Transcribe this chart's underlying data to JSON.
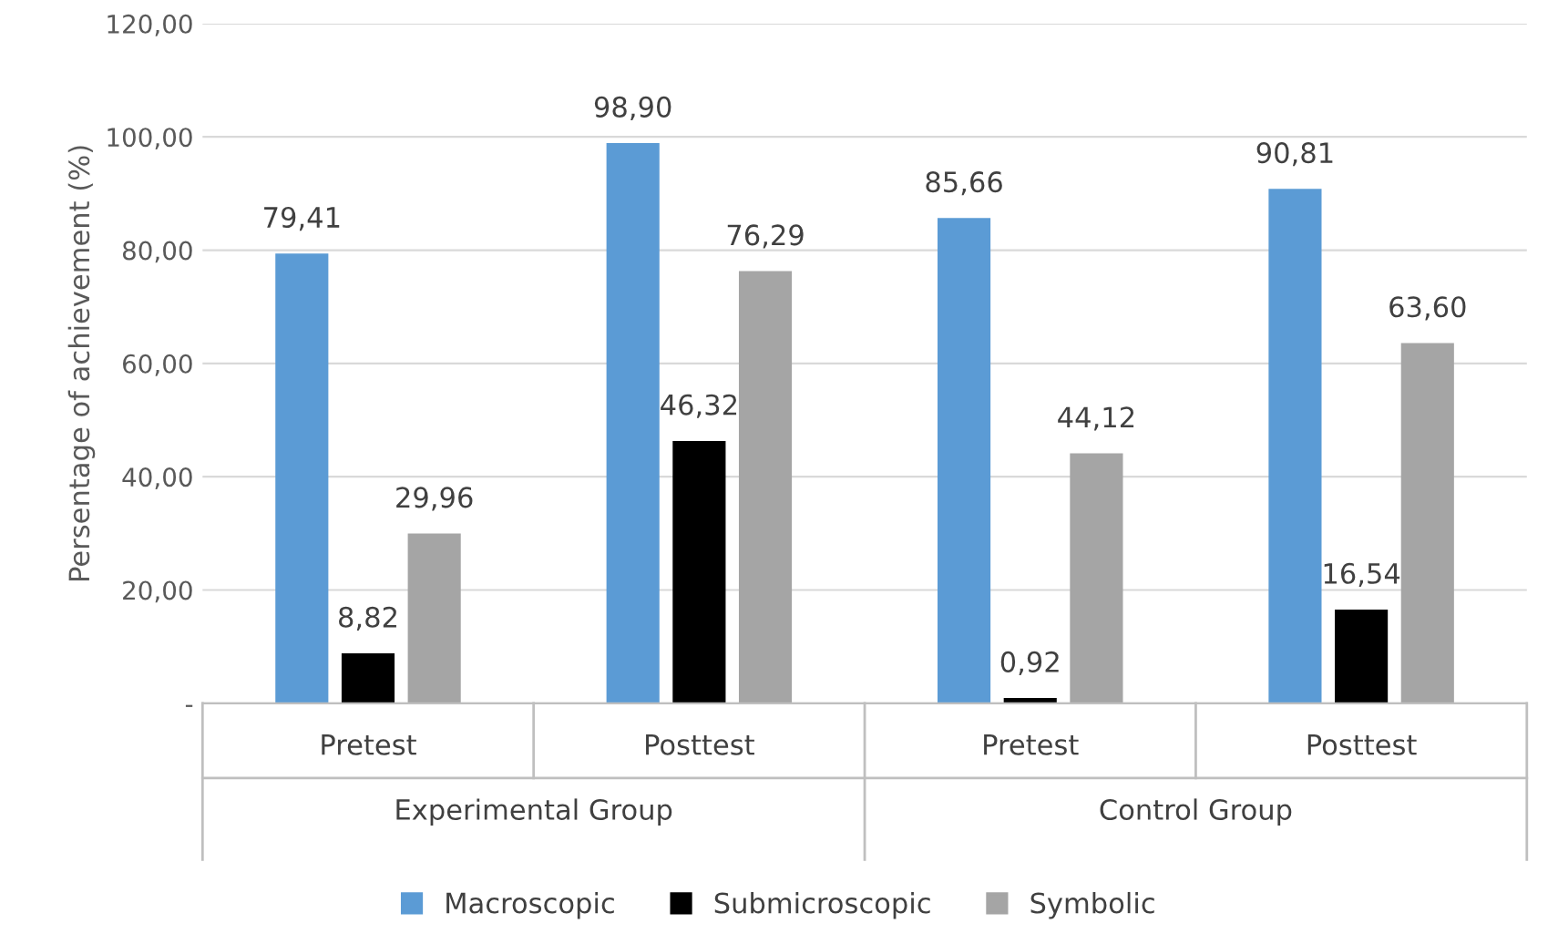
{
  "chart_data": {
    "type": "bar",
    "ylabel": "Persentage of achievement (%)",
    "categories": [
      "Pretest",
      "Posttest",
      "Pretest",
      "Posttest"
    ],
    "series": [
      {
        "name": "Macroscopic",
        "color": "#5b9bd5",
        "values": [
          79.41,
          98.9,
          85.66,
          90.81
        ],
        "value_labels": [
          "79,41",
          "98,90",
          "85,66",
          "90,81"
        ]
      },
      {
        "name": "Submicroscopic",
        "color": "#000000",
        "values": [
          8.82,
          46.32,
          0.92,
          16.54
        ],
        "value_labels": [
          "8,82",
          "46,32",
          "0,92",
          "16,54"
        ]
      },
      {
        "name": "Symbolic",
        "color": "#a5a5a5",
        "values": [
          29.96,
          76.29,
          44.12,
          63.6
        ],
        "value_labels": [
          "29,96",
          "76,29",
          "44,12",
          "63,60"
        ]
      }
    ],
    "ylim": [
      0,
      120
    ],
    "yticks": [
      {
        "value": 0,
        "label": "-"
      },
      {
        "value": 20,
        "label": "20,00"
      },
      {
        "value": 40,
        "label": "40,00"
      },
      {
        "value": 60,
        "label": "60,00"
      },
      {
        "value": 80,
        "label": "80,00"
      },
      {
        "value": 100,
        "label": "100,00"
      },
      {
        "value": 120,
        "label": "120,00"
      }
    ],
    "grid": "y",
    "legend": "bottom",
    "annotations": [
      "Experimental Group",
      "Control Group"
    ]
  }
}
